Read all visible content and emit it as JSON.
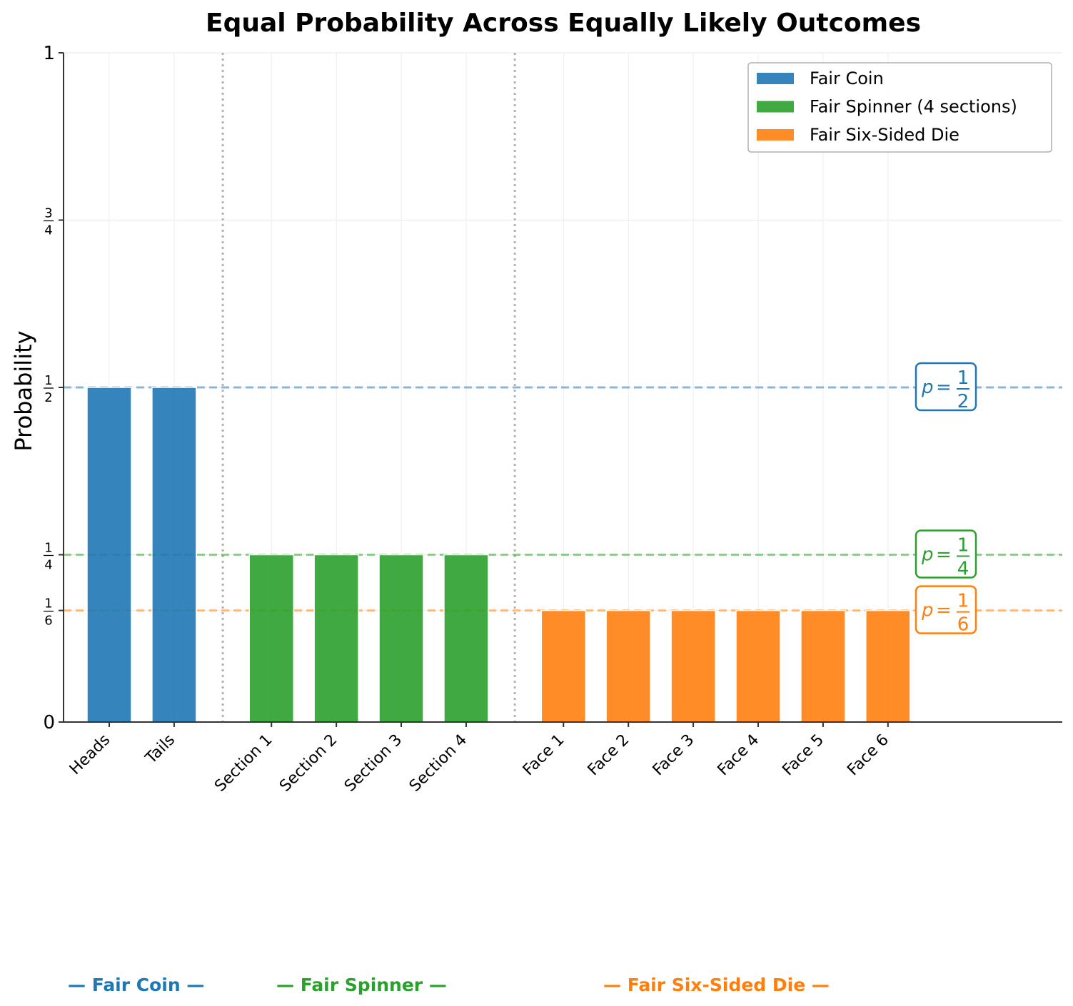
{
  "chart_data": {
    "type": "bar",
    "title": "Equal Probability Across Equally Likely Outcomes",
    "xlabel": "",
    "ylabel": "Probability",
    "ylim": [
      0,
      1
    ],
    "yticks": [
      {
        "value": 0,
        "label": "0"
      },
      {
        "value": 0.1667,
        "num": "1",
        "den": "6"
      },
      {
        "value": 0.25,
        "num": "1",
        "den": "4"
      },
      {
        "value": 0.5,
        "num": "1",
        "den": "2"
      },
      {
        "value": 0.75,
        "num": "3",
        "den": "4"
      },
      {
        "value": 1,
        "label": "1"
      }
    ],
    "grid": true,
    "legend_position": "top-right",
    "series": [
      {
        "name": "Fair Coin",
        "color": "#1f77b4",
        "group_label": "— Fair Coin —",
        "categories": [
          "Heads",
          "Tails"
        ],
        "values": [
          0.5,
          0.5
        ],
        "reference": {
          "value": 0.5,
          "p": "p",
          "num": "1",
          "den": "2"
        }
      },
      {
        "name": "Fair Spinner (4 sections)",
        "color": "#2ca02c",
        "group_label": "— Fair Spinner —",
        "categories": [
          "Section 1",
          "Section 2",
          "Section 3",
          "Section 4"
        ],
        "values": [
          0.25,
          0.25,
          0.25,
          0.25
        ],
        "reference": {
          "value": 0.25,
          "p": "p",
          "num": "1",
          "den": "4"
        }
      },
      {
        "name": "Fair Six-Sided Die",
        "color": "#ff7f0e",
        "group_label": "— Fair Six-Sided Die —",
        "categories": [
          "Face 1",
          "Face 2",
          "Face 3",
          "Face 4",
          "Face 5",
          "Face 6"
        ],
        "values": [
          0.1667,
          0.1667,
          0.1667,
          0.1667,
          0.1667,
          0.1667
        ],
        "reference": {
          "value": 0.1667,
          "p": "p",
          "num": "1",
          "den": "6"
        }
      }
    ]
  }
}
